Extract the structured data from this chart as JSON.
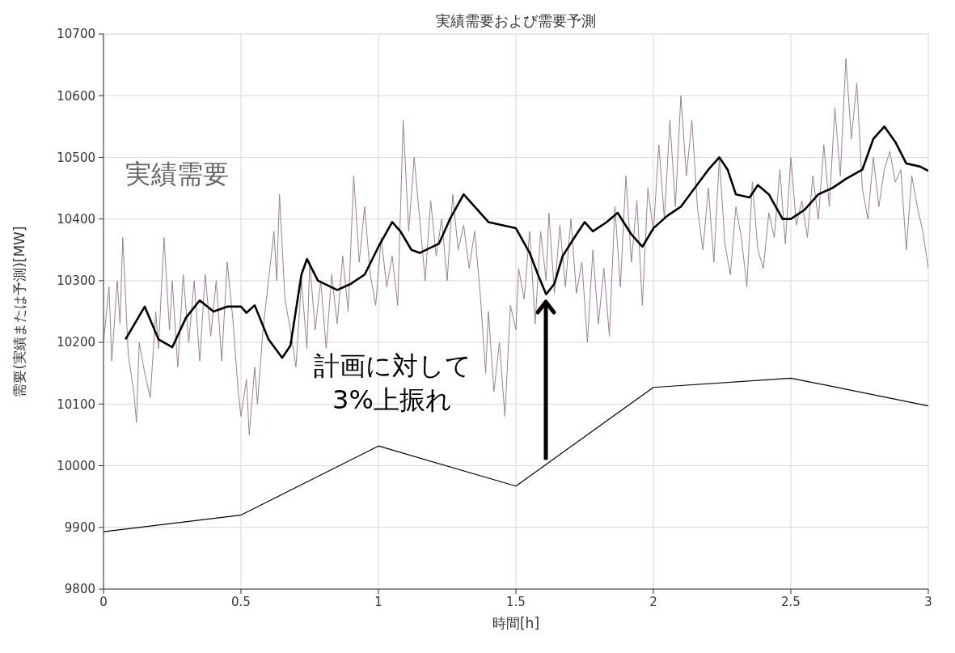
{
  "chart_data": {
    "type": "line",
    "title": "実績需要および需要予測",
    "xlabel": "時間[h]",
    "ylabel": "需要(実績または予測)[MW]",
    "xlim": [
      0,
      3
    ],
    "xticks": [
      0,
      0.5,
      1,
      1.5,
      2,
      2.5,
      3
    ],
    "ylim": [
      9800,
      10700
    ],
    "yticks": [
      9800,
      9900,
      10000,
      10100,
      10200,
      10300,
      10400,
      10500,
      10600,
      10700
    ],
    "grid": true,
    "legend": false,
    "marker": "none",
    "line_style": "solid",
    "annotations": [
      "計画に対して\n3%上振れ"
    ],
    "series": [
      {
        "name": "実績需要",
        "color": "#9a7f96",
        "x": [
          0,
          0.02,
          0.03,
          0.05,
          0.06,
          0.07,
          0.09,
          0.11,
          0.12,
          0.13,
          0.15,
          0.17,
          0.19,
          0.2,
          0.22,
          0.24,
          0.25,
          0.27,
          0.29,
          0.31,
          0.33,
          0.35,
          0.37,
          0.39,
          0.41,
          0.43,
          0.45,
          0.47,
          0.49,
          0.5,
          0.52,
          0.53,
          0.55,
          0.56,
          0.58,
          0.6,
          0.62,
          0.63,
          0.64,
          0.66,
          0.68,
          0.7,
          0.72,
          0.74,
          0.75,
          0.77,
          0.79,
          0.81,
          0.83,
          0.85,
          0.87,
          0.89,
          0.91,
          0.93,
          0.95,
          0.97,
          0.99,
          1.01,
          1.03,
          1.05,
          1.07,
          1.09,
          1.11,
          1.13,
          1.15,
          1.17,
          1.19,
          1.21,
          1.23,
          1.25,
          1.27,
          1.29,
          1.31,
          1.33,
          1.35,
          1.37,
          1.39,
          1.4,
          1.42,
          1.44,
          1.46,
          1.48,
          1.5,
          1.51,
          1.53,
          1.55,
          1.57,
          1.59,
          1.61,
          1.62,
          1.64,
          1.66,
          1.68,
          1.7,
          1.72,
          1.74,
          1.76,
          1.78,
          1.8,
          1.82,
          1.84,
          1.86,
          1.88,
          1.9,
          1.92,
          1.94,
          1.96,
          1.98,
          2,
          2.02,
          2.04,
          2.06,
          2.08,
          2.1,
          2.12,
          2.14,
          2.16,
          2.18,
          2.2,
          2.22,
          2.24,
          2.26,
          2.28,
          2.3,
          2.32,
          2.34,
          2.36,
          2.38,
          2.4,
          2.42,
          2.44,
          2.46,
          2.48,
          2.5,
          2.52,
          2.54,
          2.56,
          2.58,
          2.6,
          2.62,
          2.64,
          2.66,
          2.68,
          2.7,
          2.72,
          2.74,
          2.76,
          2.78,
          2.8,
          2.82,
          2.84,
          2.86,
          2.88,
          2.9,
          2.92,
          2.94,
          2.96,
          2.98,
          3
        ],
        "values": [
          10200,
          10290,
          10170,
          10300,
          10230,
          10370,
          10180,
          10120,
          10070,
          10200,
          10150,
          10110,
          10250,
          10190,
          10370,
          10220,
          10300,
          10160,
          10310,
          10200,
          10300,
          10170,
          10310,
          10210,
          10300,
          10170,
          10330,
          10240,
          10120,
          10080,
          10140,
          10050,
          10160,
          10100,
          10220,
          10300,
          10380,
          10300,
          10440,
          10270,
          10220,
          10160,
          10300,
          10190,
          10330,
          10220,
          10300,
          10190,
          10310,
          10230,
          10340,
          10250,
          10470,
          10330,
          10420,
          10310,
          10260,
          10370,
          10290,
          10340,
          10260,
          10560,
          10380,
          10500,
          10400,
          10300,
          10430,
          10340,
          10400,
          10300,
          10440,
          10350,
          10390,
          10320,
          10380,
          10280,
          10150,
          10250,
          10120,
          10200,
          10080,
          10260,
          10220,
          10320,
          10270,
          10380,
          10230,
          10380,
          10300,
          10410,
          10280,
          10390,
          10290,
          10400,
          10280,
          10330,
          10200,
          10350,
          10230,
          10320,
          10210,
          10420,
          10290,
          10470,
          10330,
          10430,
          10260,
          10450,
          10380,
          10520,
          10400,
          10560,
          10420,
          10600,
          10470,
          10560,
          10420,
          10350,
          10450,
          10330,
          10500,
          10360,
          10310,
          10420,
          10370,
          10290,
          10460,
          10350,
          10320,
          10410,
          10370,
          10480,
          10360,
          10500,
          10390,
          10430,
          10370,
          10470,
          10400,
          10520,
          10420,
          10580,
          10470,
          10660,
          10530,
          10620,
          10450,
          10400,
          10500,
          10420,
          10480,
          10510,
          10460,
          10480,
          10350,
          10470,
          10420,
          10380,
          10320
        ]
      },
      {
        "color": "#000000",
        "x": [
          0.08,
          0.15,
          0.2,
          0.25,
          0.3,
          0.35,
          0.4,
          0.45,
          0.5,
          0.52,
          0.55,
          0.6,
          0.65,
          0.68,
          0.72,
          0.74,
          0.78,
          0.85,
          0.9,
          0.95,
          1,
          1.05,
          1.08,
          1.12,
          1.15,
          1.22,
          1.26,
          1.31,
          1.35,
          1.4,
          1.45,
          1.5,
          1.55,
          1.58,
          1.61,
          1.64,
          1.67,
          1.72,
          1.75,
          1.78,
          1.83,
          1.87,
          1.92,
          1.96,
          2,
          2.05,
          2.1,
          2.15,
          2.2,
          2.24,
          2.27,
          2.3,
          2.35,
          2.38,
          2.42,
          2.47,
          2.5,
          2.55,
          2.6,
          2.65,
          2.7,
          2.76,
          2.8,
          2.84,
          2.88,
          2.92,
          2.97,
          3
        ],
        "values": [
          10205,
          10258,
          10205,
          10192,
          10240,
          10268,
          10250,
          10258,
          10258,
          10248,
          10260,
          10205,
          10175,
          10195,
          10310,
          10335,
          10300,
          10285,
          10295,
          10310,
          10355,
          10395,
          10380,
          10350,
          10345,
          10360,
          10400,
          10440,
          10420,
          10395,
          10390,
          10385,
          10345,
          10310,
          10278,
          10295,
          10340,
          10375,
          10395,
          10380,
          10395,
          10410,
          10375,
          10355,
          10385,
          10405,
          10420,
          10450,
          10480,
          10500,
          10480,
          10440,
          10435,
          10455,
          10440,
          10400,
          10400,
          10415,
          10440,
          10450,
          10465,
          10480,
          10530,
          10550,
          10525,
          10490,
          10485,
          10478
        ]
      },
      {
        "color": "#000000",
        "x": [
          0,
          0.5,
          1,
          1.5,
          2,
          2.5,
          3
        ],
        "values": [
          9893,
          9920,
          10032,
          9967,
          10127,
          10142,
          10097
        ]
      }
    ]
  }
}
